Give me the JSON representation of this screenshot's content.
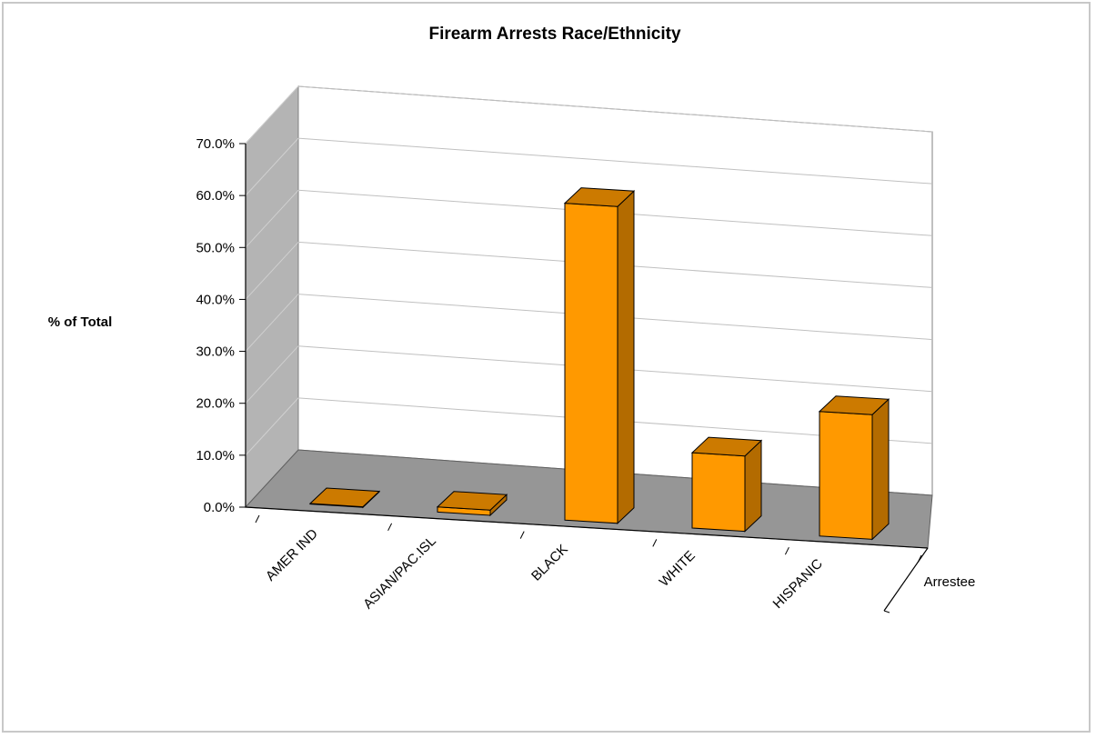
{
  "chart_data": {
    "type": "bar",
    "title": "Firearm Arrests Race/Ethnicity",
    "xlabel": "",
    "ylabel": "% of Total",
    "categories": [
      "AMER IND",
      "ASIAN/PAC.ISL",
      "BLACK",
      "WHITE",
      "HISPANIC"
    ],
    "series": [
      {
        "name": "Arrestee",
        "values": [
          0.1,
          1.0,
          61.0,
          14.5,
          24.0
        ]
      }
    ],
    "ylim": [
      0,
      70
    ],
    "yticks": [
      "0.0%",
      "10.0%",
      "20.0%",
      "30.0%",
      "40.0%",
      "50.0%",
      "60.0%",
      "70.0%"
    ],
    "grid": true,
    "legend": "none",
    "colors": {
      "bar_front": "#FF9900",
      "bar_top": "#CC7A00",
      "bar_side": "#B36B00",
      "floor": "#969696",
      "side_wall": "#B4B4B4",
      "back_wall": "#FFFFFF",
      "gridline": "#C0C0C0"
    }
  }
}
